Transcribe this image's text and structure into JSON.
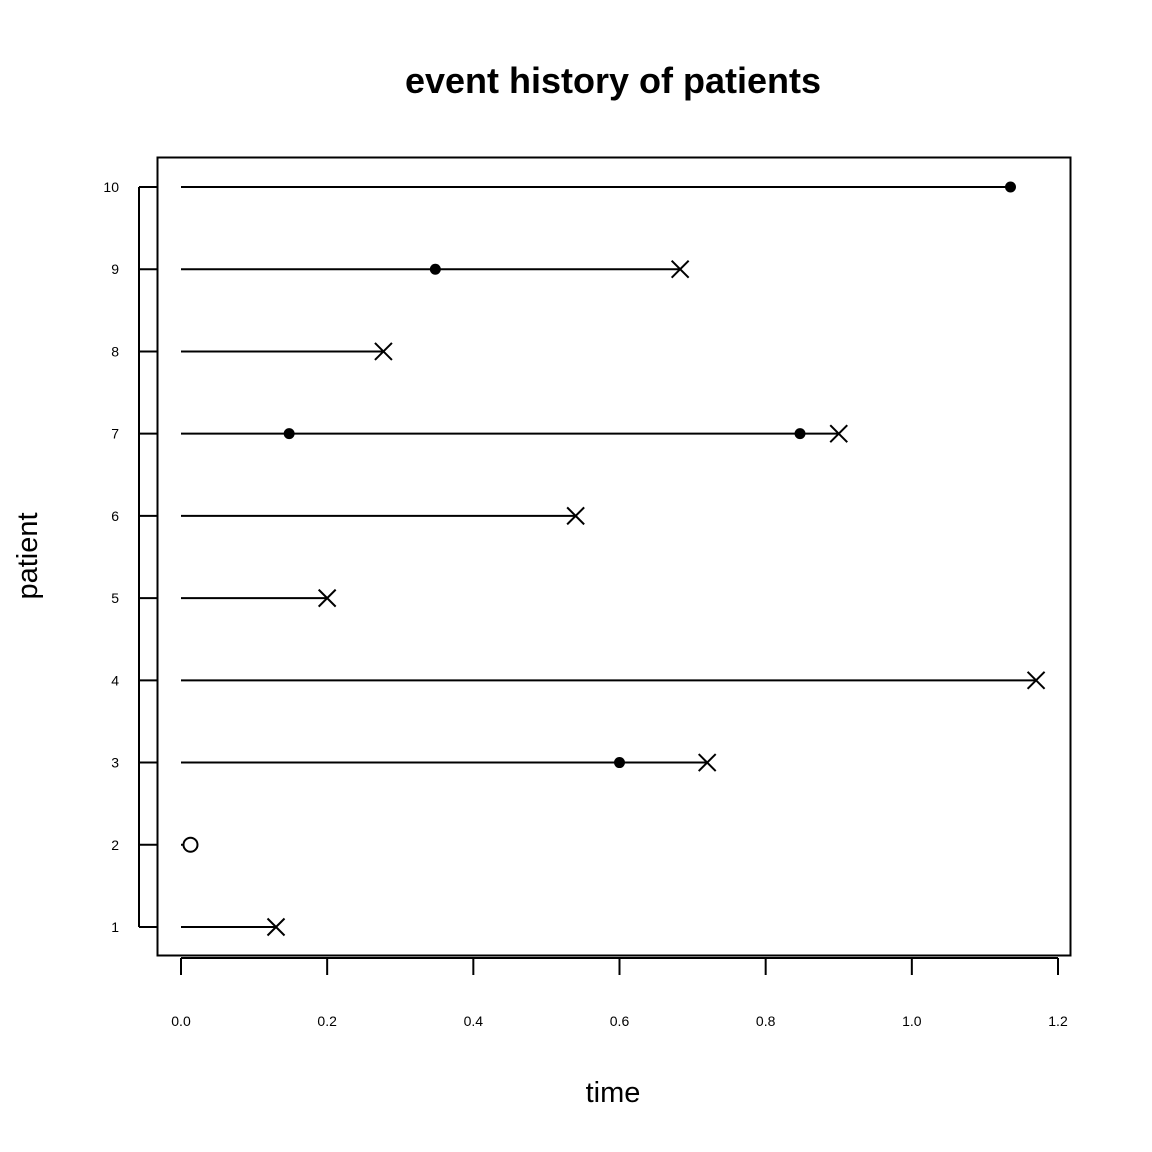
{
  "chart_data": {
    "type": "scatter",
    "title": "event history of patients",
    "xlabel": "time",
    "ylabel": "patient",
    "xlim": [
      0.0,
      1.2
    ],
    "ylim": [
      1,
      10
    ],
    "x_ticks": [
      "0.0",
      "0.2",
      "0.4",
      "0.6",
      "0.8",
      "1.0",
      "1.2"
    ],
    "y_ticks": [
      "1",
      "2",
      "3",
      "4",
      "5",
      "6",
      "7",
      "8",
      "9",
      "10"
    ],
    "grid": false,
    "legend": "none",
    "patients": [
      {
        "patient": 1,
        "end": 0.13,
        "end_marker": "cross",
        "events": []
      },
      {
        "patient": 2,
        "end": 0.013,
        "end_marker": "circle",
        "events": []
      },
      {
        "patient": 3,
        "end": 0.72,
        "end_marker": "cross",
        "events": [
          0.6
        ]
      },
      {
        "patient": 4,
        "end": 1.17,
        "end_marker": "cross",
        "events": []
      },
      {
        "patient": 5,
        "end": 0.2,
        "end_marker": "cross",
        "events": []
      },
      {
        "patient": 6,
        "end": 0.54,
        "end_marker": "cross",
        "events": []
      },
      {
        "patient": 7,
        "end": 0.9,
        "end_marker": "cross",
        "events": [
          0.148,
          0.847
        ]
      },
      {
        "patient": 8,
        "end": 0.277,
        "end_marker": "cross",
        "events": []
      },
      {
        "patient": 9,
        "end": 0.683,
        "end_marker": "cross",
        "events": [
          0.348
        ]
      },
      {
        "patient": 10,
        "end": 1.135,
        "end_marker": "dot",
        "events": []
      }
    ],
    "colors": {
      "ink": "#000000",
      "background": "#ffffff"
    }
  }
}
